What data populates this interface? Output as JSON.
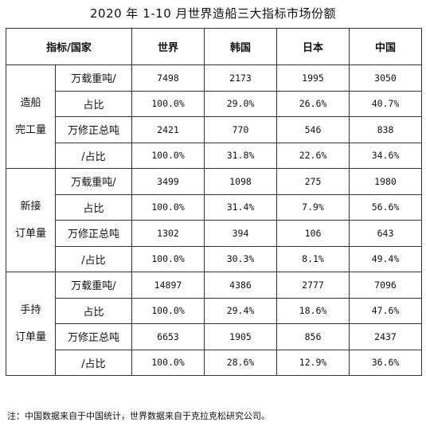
{
  "title": "2020 年 1-10 月世界造船三大指标市场份额",
  "header": [
    "指标/国家",
    "世界",
    "韩国",
    "日本",
    "中国"
  ],
  "groups": [
    {
      "name_lines": [
        "造船",
        "完工量"
      ],
      "rows": [
        {
          "unit": "万载重吨/",
          "values": [
            "7498",
            "2173",
            "1995",
            "3050"
          ]
        },
        {
          "unit": "占比",
          "values": [
            "100.0%",
            "29.0%",
            "26.6%",
            "40.7%"
          ]
        },
        {
          "unit": "万修正总吨",
          "values": [
            "2421",
            "770",
            "546",
            "838"
          ]
        },
        {
          "unit": "/占比",
          "values": [
            "100.0%",
            "31.8%",
            "22.6%",
            "34.6%"
          ]
        }
      ]
    },
    {
      "name_lines": [
        "新接",
        "订单量"
      ],
      "rows": [
        {
          "unit": "万载重吨/",
          "values": [
            "3499",
            "1098",
            "275",
            "1980"
          ]
        },
        {
          "unit": "占比",
          "values": [
            "100.0%",
            "31.4%",
            "7.9%",
            "56.6%"
          ]
        },
        {
          "unit": "万修正总吨",
          "values": [
            "1302",
            "394",
            "106",
            "643"
          ]
        },
        {
          "unit": "/占比",
          "values": [
            "100.0%",
            "30.3%",
            "8.1%",
            "49.4%"
          ]
        }
      ]
    },
    {
      "name_lines": [
        "手持",
        "订单量"
      ],
      "rows": [
        {
          "unit": "万载重吨/",
          "values": [
            "14897",
            "4386",
            "2777",
            "7096"
          ]
        },
        {
          "unit": "占比",
          "values": [
            "100.0%",
            "29.4%",
            "18.6%",
            "47.6%"
          ]
        },
        {
          "unit": "万修正总吨",
          "values": [
            "6653",
            "1905",
            "856",
            "2437"
          ]
        },
        {
          "unit": "/占比",
          "values": [
            "100.0%",
            "28.6%",
            "12.9%",
            "36.6%"
          ]
        }
      ]
    }
  ],
  "note": "注：中国数据来自于中国统计，世界数据来自于克拉克松研究公司。"
}
